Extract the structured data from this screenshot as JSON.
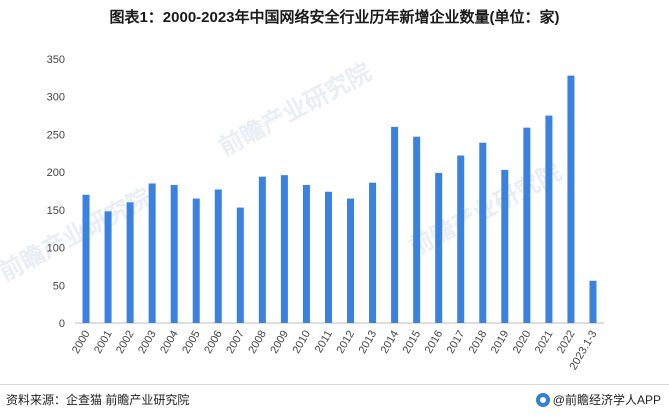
{
  "title": "图表1：2000-2023年中国网络安全行业历年新增企业数量(单位：家)",
  "source": "资料来源：企查猫 前瞻产业研究院",
  "brand": "@前瞻经济学人APP",
  "watermark": {
    "text": "前瞻产业研究院",
    "sub": "前瞻产业研究院"
  },
  "colors": {
    "bar": "#3b82e0",
    "axis": "#bdbdbd",
    "text": "#444444"
  },
  "chart_data": {
    "type": "bar",
    "title": "图表1：2000-2023年中国网络安全行业历年新增企业数量(单位：家)",
    "xlabel": "",
    "ylabel": "",
    "ylim": [
      0,
      350
    ],
    "yticks": [
      0,
      50,
      100,
      150,
      200,
      250,
      300,
      350
    ],
    "grid": false,
    "categories": [
      "2000",
      "2001",
      "2002",
      "2003",
      "2004",
      "2005",
      "2006",
      "2007",
      "2008",
      "2009",
      "2010",
      "2011",
      "2012",
      "2013",
      "2014",
      "2015",
      "2016",
      "2017",
      "2018",
      "2019",
      "2020",
      "2021",
      "2022",
      "2023.1-3"
    ],
    "values": [
      170,
      148,
      160,
      185,
      183,
      165,
      177,
      153,
      194,
      196,
      183,
      174,
      165,
      186,
      260,
      247,
      199,
      222,
      239,
      203,
      259,
      275,
      328,
      56
    ]
  }
}
